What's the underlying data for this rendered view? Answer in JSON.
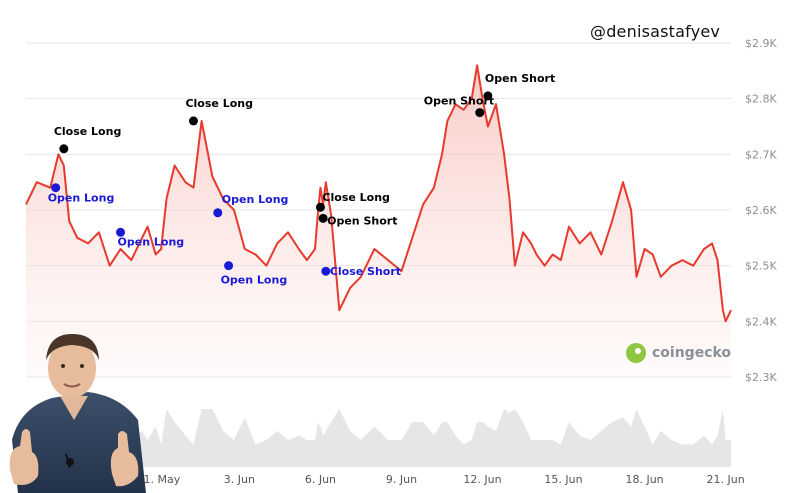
{
  "watermark": {
    "handle": "@denisastafyev",
    "brand": "coingecko"
  },
  "colors": {
    "price_line": "#e8392e",
    "fill_top": "#f6b9b2",
    "open_marker": "#1a1ad6",
    "close_marker": "#000000",
    "grid": "#e6e6e6",
    "volume": "#dcdcdc"
  },
  "chart_data": {
    "type": "line",
    "y_tick_labels": [
      "$2.9K",
      "$2.8K",
      "$2.7K",
      "$2.6K",
      "$2.5K",
      "$2.4K",
      "$2.3K"
    ],
    "y_ticks": [
      2900,
      2800,
      2700,
      2600,
      2500,
      2400,
      2300
    ],
    "ylim": [
      2300,
      2900
    ],
    "x_tick_labels": [
      "May",
      "31. May",
      "3. Jun",
      "6. Jun",
      "9. Jun",
      "12. Jun",
      "15. Jun",
      "18. Jun",
      "21. Jun"
    ],
    "x_ticks": [
      28,
      31,
      34,
      37,
      40,
      43,
      46,
      49,
      52
    ],
    "xlim": [
      26.1,
      52.2
    ],
    "grid": true,
    "series": [
      {
        "x": [
          26.1,
          26.5,
          27.0,
          27.3,
          27.5,
          27.7,
          28.0,
          28.4,
          28.8,
          29.2,
          29.6,
          30.0,
          30.4,
          30.6,
          30.9,
          31.1,
          31.3,
          31.6,
          32.0,
          32.3,
          32.6,
          33.0,
          33.4,
          33.8,
          34.2,
          34.6,
          35.0,
          35.4,
          35.8,
          36.2,
          36.5,
          36.8,
          36.9,
          37.0,
          37.1,
          37.2,
          37.4,
          37.7,
          38.1,
          38.5,
          39.0,
          39.5,
          40.0,
          40.4,
          40.8,
          41.2,
          41.5,
          41.7,
          42.0,
          42.3,
          42.6,
          42.8,
          43.0,
          43.2,
          43.5,
          43.8,
          44.0,
          44.2,
          44.5,
          44.8,
          45.0,
          45.3,
          45.6,
          45.9,
          46.2,
          46.6,
          47.0,
          47.4,
          47.8,
          48.2,
          48.5,
          48.7,
          49.0,
          49.3,
          49.6,
          50.0,
          50.4,
          50.8,
          51.2,
          51.5,
          51.7,
          51.9,
          52.0,
          52.2
        ],
        "y": [
          2610,
          2650,
          2640,
          2700,
          2680,
          2580,
          2550,
          2540,
          2560,
          2500,
          2530,
          2510,
          2550,
          2570,
          2520,
          2530,
          2620,
          2680,
          2650,
          2640,
          2760,
          2660,
          2620,
          2600,
          2530,
          2520,
          2500,
          2540,
          2560,
          2530,
          2510,
          2530,
          2590,
          2640,
          2610,
          2650,
          2590,
          2420,
          2460,
          2480,
          2530,
          2510,
          2490,
          2550,
          2610,
          2640,
          2700,
          2760,
          2790,
          2780,
          2800,
          2860,
          2800,
          2750,
          2790,
          2700,
          2620,
          2500,
          2560,
          2540,
          2520,
          2500,
          2520,
          2510,
          2570,
          2540,
          2560,
          2520,
          2580,
          2650,
          2600,
          2480,
          2530,
          2520,
          2480,
          2500,
          2510,
          2500,
          2530,
          2540,
          2510,
          2420,
          2400,
          2420
        ]
      }
    ],
    "annotations": [
      {
        "label": "Close Long",
        "x": 27.5,
        "y": 2710,
        "kind": "close"
      },
      {
        "label": "Open Long",
        "x": 27.2,
        "y": 2640,
        "kind": "open"
      },
      {
        "label": "Open Long",
        "x": 29.6,
        "y": 2560,
        "kind": "open"
      },
      {
        "label": "Close Long",
        "x": 32.3,
        "y": 2760,
        "kind": "close"
      },
      {
        "label": "Open Long",
        "x": 33.2,
        "y": 2595,
        "kind": "open"
      },
      {
        "label": "Open Long",
        "x": 33.6,
        "y": 2500,
        "kind": "open"
      },
      {
        "label": "Close Long",
        "x": 37.0,
        "y": 2605,
        "kind": "close"
      },
      {
        "label": "Open Short",
        "x": 37.1,
        "y": 2585,
        "kind": "close"
      },
      {
        "label": "Close Short",
        "x": 37.2,
        "y": 2490,
        "kind": "open"
      },
      {
        "label": "Open Short",
        "x": 42.9,
        "y": 2775,
        "kind": "close"
      },
      {
        "label": "Open Short",
        "x": 43.2,
        "y": 2805,
        "kind": "close"
      }
    ]
  }
}
